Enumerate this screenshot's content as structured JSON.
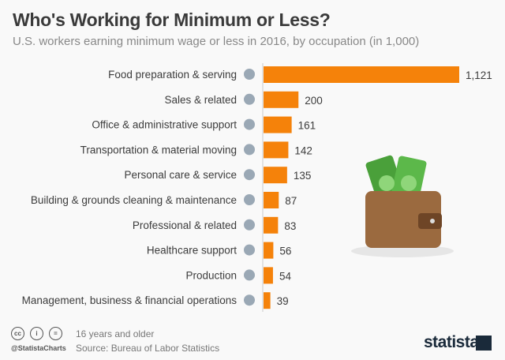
{
  "title": "Who's Working for Minimum or Less?",
  "subtitle": "U.S. workers earning minimum wage or less in 2016, by occupation (in 1,000)",
  "chart_data": {
    "type": "bar",
    "orientation": "horizontal",
    "categories": [
      "Food preparation & serving",
      "Sales & related",
      "Office & administrative support",
      "Transportation & material moving",
      "Personal care & service",
      "Building & grounds cleaning & maintenance",
      "Professional & related",
      "Healthcare support",
      "Production",
      "Management, business & financial operations"
    ],
    "values": [
      1121,
      200,
      161,
      142,
      135,
      87,
      83,
      56,
      54,
      39
    ],
    "value_labels": [
      "1,121",
      "200",
      "161",
      "142",
      "135",
      "87",
      "83",
      "56",
      "54",
      "39"
    ],
    "icons": [
      "cloche-icon",
      "price-tag-icon",
      "office-chair-icon",
      "truck-icon",
      "heart-pulse-icon",
      "spray-bottle-icon",
      "businessman-icon",
      "first-aid-icon",
      "gear-icon",
      "tie-icon"
    ],
    "bar_color": "#f5820a",
    "xlim": [
      0,
      1121
    ]
  },
  "footer": {
    "note": "16 years and older",
    "source": "Source: Bureau of Labor Statistics",
    "handle": "@StatistaCharts",
    "brand": "statista",
    "cc": [
      "cc",
      "i",
      "="
    ]
  }
}
